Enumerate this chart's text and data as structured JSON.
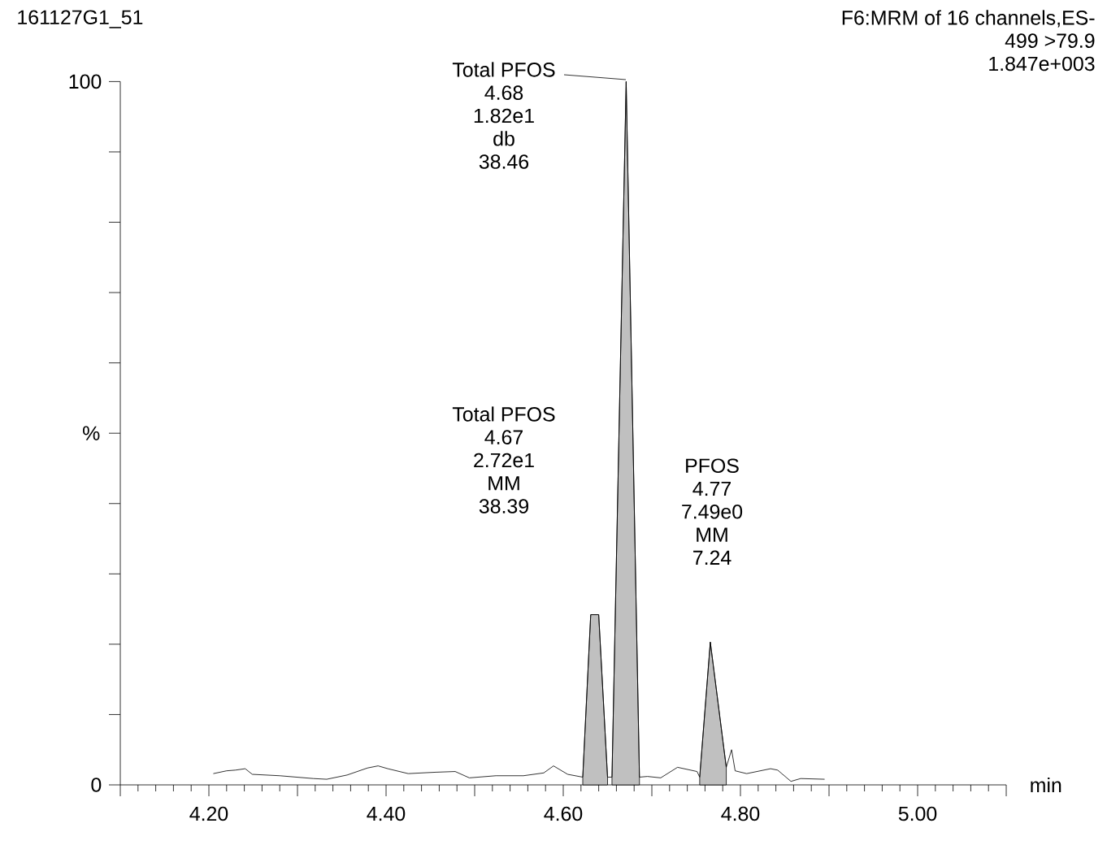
{
  "chart_data": {
    "type": "line",
    "title": "161127G1_51",
    "xlabel": "min",
    "ylabel": "%",
    "xlim": [
      4.1,
      5.1
    ],
    "ylim": [
      0,
      100
    ],
    "xticks": [
      {
        "value": 4.1,
        "label": null
      },
      {
        "value": 4.2,
        "label": "4.20"
      },
      {
        "value": 4.3,
        "label": null
      },
      {
        "value": 4.4,
        "label": "4.40"
      },
      {
        "value": 4.5,
        "label": null
      },
      {
        "value": 4.6,
        "label": "4.60"
      },
      {
        "value": 4.7,
        "label": null
      },
      {
        "value": 4.8,
        "label": "4.80"
      },
      {
        "value": 4.9,
        "label": null
      },
      {
        "value": 5.0,
        "label": "5.00"
      },
      {
        "value": 5.1,
        "label": null
      }
    ],
    "yticks": [
      0,
      {
        "value": 10,
        "label": null
      },
      {
        "value": 20,
        "label": null
      },
      {
        "value": 30,
        "label": null
      },
      {
        "value": 40,
        "label": null
      },
      {
        "value": 50,
        "label": null
      },
      {
        "value": 60,
        "label": null
      },
      {
        "value": 70,
        "label": null
      },
      {
        "value": 80,
        "label": null
      },
      {
        "value": 90,
        "label": null
      },
      100
    ],
    "series": [
      {
        "type": "area",
        "color": "#c0c0c0",
        "x": [
          4.622,
          4.631,
          4.64,
          4.65
        ],
        "values": [
          1.1,
          24.2,
          24.2,
          1.1
        ]
      },
      {
        "type": "area",
        "color": "#c0c0c0",
        "x": [
          4.655,
          4.671,
          4.686
        ],
        "values": [
          1.1,
          100,
          1.1
        ]
      },
      {
        "type": "area",
        "color": "#c0c0c0",
        "x": [
          4.754,
          4.766,
          4.784
        ],
        "values": [
          1.1,
          20.3,
          2.5
        ]
      },
      {
        "color": "#000000",
        "x": [
          4.205,
          4.22,
          4.23,
          4.241,
          4.249,
          4.28,
          4.318,
          4.333,
          4.356,
          4.379,
          4.391,
          4.402,
          4.425,
          4.456,
          4.478,
          4.494,
          4.524,
          4.555,
          4.578,
          4.589,
          4.605,
          4.622,
          4.631,
          4.64,
          4.65,
          4.655,
          4.671,
          4.686,
          4.695,
          4.71,
          4.729,
          4.751,
          4.754,
          4.766,
          4.784,
          4.79,
          4.794,
          4.807,
          4.834,
          4.842,
          4.857,
          4.868,
          4.895
        ],
        "values": [
          1.6,
          2.0,
          2.1,
          2.3,
          1.5,
          1.3,
          0.9,
          0.8,
          1.4,
          2.4,
          2.7,
          2.3,
          1.6,
          1.8,
          1.9,
          1.0,
          1.3,
          1.3,
          1.7,
          2.7,
          1.5,
          1.1,
          24.2,
          24.2,
          1.1,
          1.1,
          100,
          1.1,
          1.2,
          1.0,
          2.5,
          1.9,
          1.1,
          20.3,
          2.5,
          5.0,
          2.0,
          1.6,
          2.3,
          2.1,
          0.5,
          0.9,
          0.8
        ]
      }
    ],
    "annotations": [
      "F6:MRM of 16 channels,ES-",
      "499 >79.9",
      "1.847e+003",
      "Total PFOS",
      "4.68",
      "1.82e1",
      "db",
      "38.46",
      "Total PFOS",
      "4.67",
      "2.72e1",
      "MM",
      "38.39",
      "PFOS",
      "4.77",
      "7.49e0",
      "MM",
      "7.24"
    ]
  }
}
